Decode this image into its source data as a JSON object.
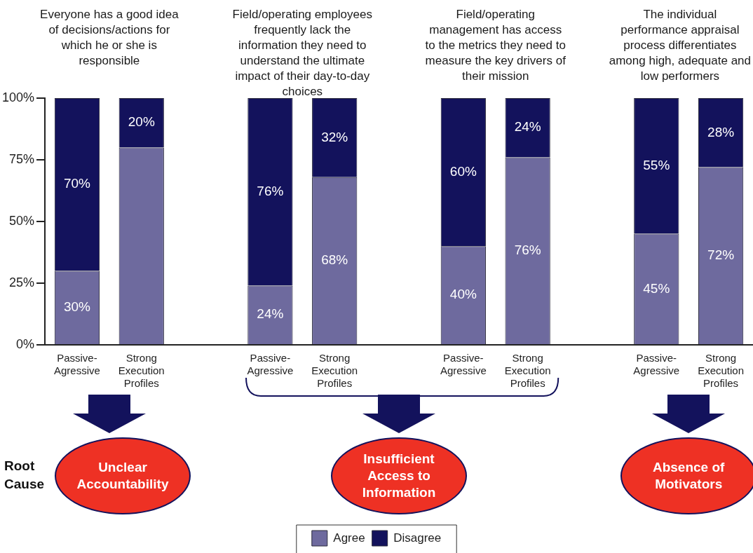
{
  "chart_data": {
    "type": "bar",
    "stacked": true,
    "categories": [
      "Passive-Agressive",
      "Strong Execution Profiles",
      null,
      "Passive-Agressive",
      "Strong Execution Profiles",
      null,
      "Passive-Agressive",
      "Strong Execution Profiles",
      null,
      "Passive-Agressive",
      "Strong Execution Profiles"
    ],
    "series": [
      {
        "name": "Agree",
        "color": "#6e6a9e",
        "values": [
          30,
          80,
          null,
          24,
          68,
          null,
          40,
          76,
          null,
          45,
          72
        ],
        "value_labels": [
          "30%",
          null,
          null,
          "24%",
          "68%",
          null,
          "40%",
          "76%",
          null,
          "45%",
          "72%"
        ]
      },
      {
        "name": "Disagree",
        "color": "#13125c",
        "values": [
          70,
          20,
          null,
          76,
          32,
          null,
          60,
          24,
          null,
          55,
          28
        ],
        "value_labels": [
          "70%",
          "20%",
          null,
          "76%",
          "32%",
          null,
          "60%",
          "24%",
          null,
          "55%",
          "28%"
        ]
      }
    ],
    "ylim": [
      0,
      100
    ],
    "yticks": [
      {
        "value": 0,
        "label": "0%"
      },
      {
        "value": 25,
        "label": "25%"
      },
      {
        "value": 50,
        "label": "50%"
      },
      {
        "value": 75,
        "label": "75%"
      },
      {
        "value": 100,
        "label": "100%"
      }
    ],
    "grid": false,
    "legend": "bottom",
    "annotations": [
      "Everyone has a good idea of decisions/actions for which he or she is responsible",
      "Field/operating employees frequently lack the information they need to understand the ultimate impact of their day-to-day choices",
      "Field/operating management has access to the metrics they need to measure the key drivers of their mission",
      "The individual performance appraisal process differentiates among high, adequate and low performers",
      "Root Cause",
      "Unclear Accountability",
      "Insufficient Access to Information",
      "Absence of Motivators"
    ]
  }
}
